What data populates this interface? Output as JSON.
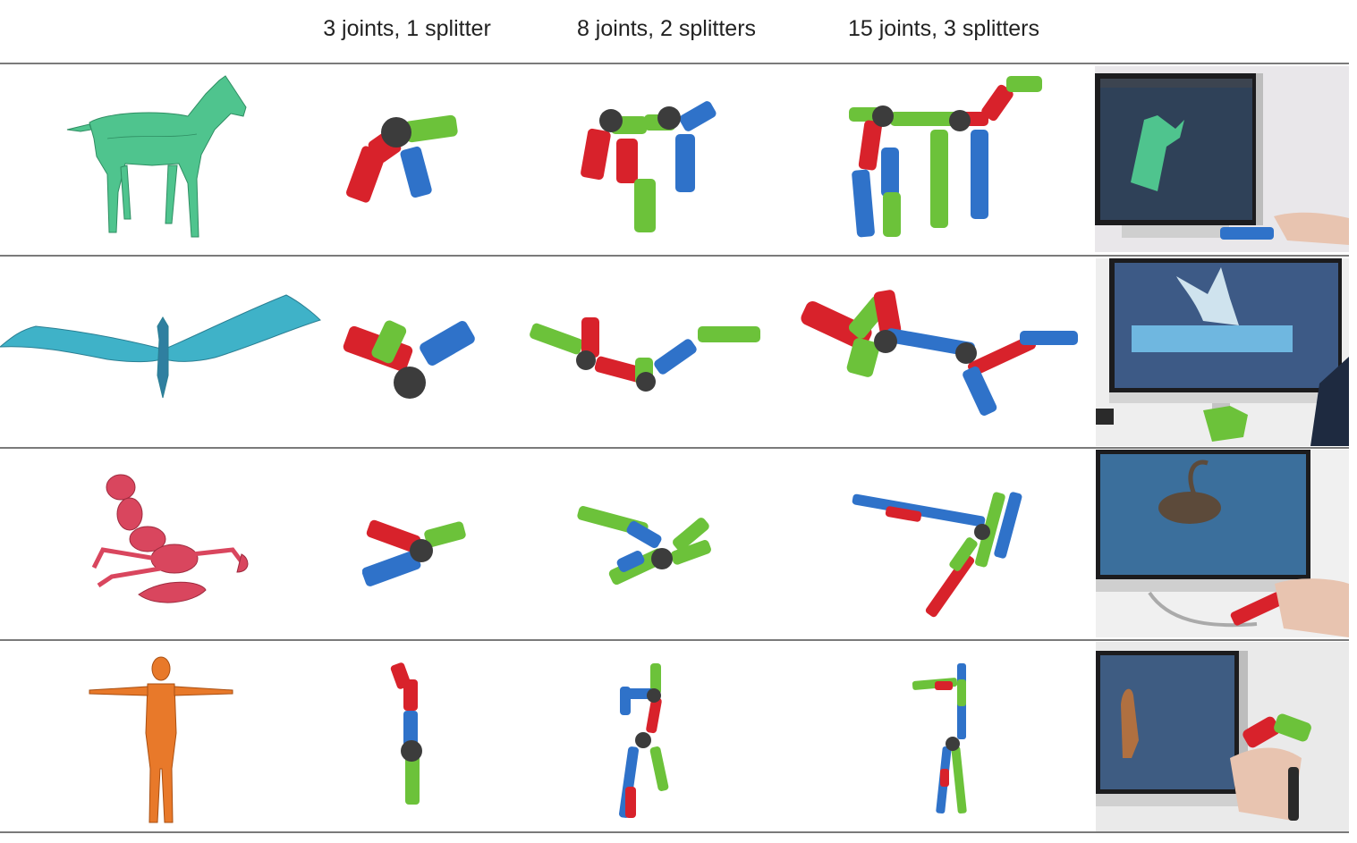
{
  "column_headers": [
    {
      "id": "model",
      "label": ""
    },
    {
      "id": "joints3",
      "label": "3 joints, 1 splitter"
    },
    {
      "id": "joints8",
      "label": "8 joints, 2 splitters"
    },
    {
      "id": "joints15",
      "label": "15 joints, 3 splitters"
    },
    {
      "id": "photo",
      "label": ""
    }
  ],
  "rows": [
    {
      "id": "horse",
      "model_color": "#4fc48e"
    },
    {
      "id": "dragon",
      "model_color": "#3fb2c8"
    },
    {
      "id": "scorpion",
      "model_color": "#d9465e"
    },
    {
      "id": "human",
      "model_color": "#e8792a"
    }
  ],
  "part_colors": {
    "red": "#d8222b",
    "green": "#6cc23a",
    "blue": "#2f72c9",
    "splitter": "#3c3c3c"
  }
}
